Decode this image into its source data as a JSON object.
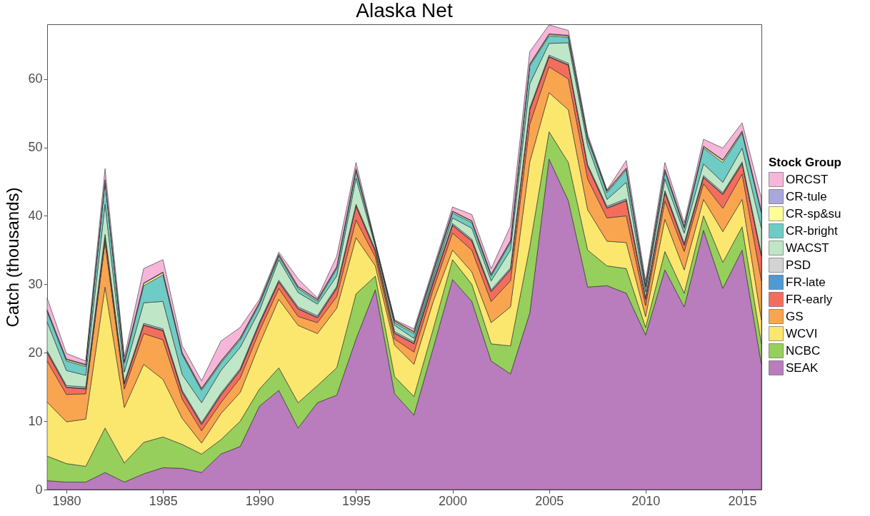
{
  "chart_data": {
    "type": "area",
    "title": "Alaska Net",
    "ylabel": "Catch (thousands)",
    "legend_title": "Stock Group",
    "stacked": true,
    "legend": "right",
    "x": [
      1979,
      1980,
      1981,
      1982,
      1983,
      1984,
      1985,
      1986,
      1987,
      1988,
      1989,
      1990,
      1991,
      1992,
      1993,
      1994,
      1995,
      1996,
      1997,
      1998,
      1999,
      2000,
      2001,
      2002,
      2003,
      2004,
      2005,
      2006,
      2007,
      2008,
      2009,
      2010,
      2011,
      2012,
      2013,
      2014,
      2015,
      2016
    ],
    "xlim": [
      1979,
      2016
    ],
    "xticks": [
      1980,
      1985,
      1990,
      1995,
      2000,
      2005,
      2010,
      2015
    ],
    "ylim": [
      0,
      68
    ],
    "yticks": [
      0,
      10,
      20,
      30,
      40,
      50,
      60
    ],
    "series": [
      {
        "name": "SEAK",
        "color": "#b97cbd",
        "values": [
          1.3,
          1.1,
          1.1,
          2.5,
          1.1,
          2.3,
          3.2,
          3.1,
          2.5,
          5.2,
          6.3,
          12.2,
          14.5,
          9.0,
          12.7,
          13.8,
          22.0,
          29.2,
          14.0,
          10.9,
          20.7,
          30.7,
          27.5,
          18.8,
          16.9,
          25.8,
          48.3,
          42.2,
          29.6,
          29.8,
          28.7,
          22.6,
          32.1,
          26.7,
          37.9,
          29.4,
          35.0,
          18.3
        ]
      },
      {
        "name": "NCBC",
        "color": "#96cf5c",
        "values": [
          3.6,
          2.7,
          2.3,
          6.5,
          2.8,
          4.6,
          4.5,
          3.5,
          2.7,
          2.1,
          3.7,
          2.5,
          3.3,
          3.7,
          2.5,
          4.0,
          6.6,
          2.0,
          2.5,
          2.7,
          2.8,
          2.9,
          2.5,
          2.5,
          4.1,
          9.7,
          4.0,
          5.6,
          5.4,
          2.9,
          3.6,
          1.1,
          2.7,
          2.0,
          2.1,
          3.8,
          3.4,
          3.0
        ]
      },
      {
        "name": "WCVI",
        "color": "#fbe76e",
        "values": [
          7.9,
          6.1,
          6.9,
          20.6,
          8.1,
          11.4,
          8.4,
          3.8,
          1.6,
          3.8,
          4.2,
          6.6,
          10.0,
          11.3,
          7.6,
          8.7,
          8.2,
          1.5,
          4.6,
          4.7,
          4.0,
          1.4,
          1.8,
          3.1,
          5.7,
          12.4,
          5.7,
          7.7,
          5.9,
          3.6,
          3.8,
          1.6,
          4.7,
          3.4,
          2.4,
          4.5,
          4.0,
          3.5
        ]
      },
      {
        "name": "GS",
        "color": "#f9a54f",
        "values": [
          6.0,
          4.0,
          3.7,
          6.5,
          2.7,
          4.5,
          5.8,
          2.8,
          1.8,
          1.6,
          2.1,
          1.9,
          1.6,
          1.3,
          1.6,
          1.7,
          2.6,
          1.3,
          0.9,
          1.8,
          1.8,
          2.5,
          3.2,
          3.1,
          3.8,
          5.5,
          3.8,
          4.5,
          4.5,
          3.4,
          3.9,
          1.6,
          2.7,
          2.7,
          2.3,
          3.4,
          3.7,
          5.7
        ]
      },
      {
        "name": "FR-early",
        "color": "#f46d5c",
        "values": [
          1.2,
          1.0,
          0.7,
          0.9,
          0.7,
          1.2,
          1.3,
          1.0,
          0.9,
          1.1,
          1.1,
          1.0,
          0.9,
          1.1,
          0.7,
          1.2,
          2.0,
          0.8,
          0.8,
          1.2,
          0.9,
          1.1,
          1.3,
          1.4,
          1.6,
          2.1,
          1.4,
          2.0,
          1.8,
          1.4,
          2.2,
          0.9,
          1.2,
          0.9,
          0.9,
          2.0,
          1.5,
          3.6
        ]
      },
      {
        "name": "FR-late",
        "color": "#4f9ad3",
        "values": [
          0.1,
          0.1,
          0.1,
          0.1,
          0.1,
          0.1,
          0.1,
          0.1,
          0.1,
          0.1,
          0.1,
          0.1,
          0.1,
          0.1,
          0.1,
          0.1,
          0.1,
          0.1,
          0.1,
          0.1,
          0.1,
          0.1,
          0.1,
          0.1,
          0.1,
          0.1,
          0.1,
          0.1,
          0.1,
          0.1,
          0.1,
          0.1,
          0.1,
          0.1,
          0.1,
          0.1,
          0.1,
          0.1
        ]
      },
      {
        "name": "PSD",
        "color": "#d3d3d3",
        "values": [
          0.2,
          0.2,
          0.2,
          0.2,
          0.2,
          0.2,
          0.2,
          0.2,
          0.2,
          0.2,
          0.2,
          0.2,
          0.2,
          0.2,
          0.2,
          0.2,
          0.2,
          0.2,
          0.2,
          0.2,
          0.2,
          0.2,
          0.2,
          0.2,
          0.2,
          0.2,
          0.2,
          0.2,
          0.2,
          0.2,
          0.2,
          0.2,
          0.2,
          0.2,
          0.2,
          0.2,
          0.2,
          0.2
        ]
      },
      {
        "name": "WACST",
        "color": "#bfe6c6",
        "values": [
          4.2,
          2.2,
          1.7,
          4.4,
          1.5,
          3.0,
          4.0,
          2.3,
          2.9,
          3.3,
          3.1,
          1.7,
          3.0,
          2.1,
          1.7,
          1.5,
          3.8,
          0.5,
          0.9,
          0.5,
          0.5,
          0.8,
          1.6,
          1.3,
          2.6,
          3.5,
          1.7,
          3.0,
          2.8,
          1.0,
          2.4,
          0.8,
          1.7,
          1.5,
          1.7,
          1.5,
          2.0,
          3.8
        ]
      },
      {
        "name": "CR-bright",
        "color": "#6fcbc5",
        "values": [
          1.5,
          1.4,
          1.3,
          3.3,
          1.3,
          2.5,
          3.9,
          2.9,
          1.8,
          1.1,
          1.1,
          0.9,
          0.5,
          0.6,
          0.4,
          1.1,
          1.1,
          0.2,
          0.4,
          0.7,
          0.7,
          0.7,
          0.8,
          0.7,
          1.1,
          2.6,
          1.1,
          0.8,
          0.9,
          1.0,
          1.8,
          0.7,
          1.1,
          0.7,
          2.3,
          2.9,
          2.2,
          2.2
        ]
      },
      {
        "name": "CR-sp&su",
        "color": "#fdfd9a",
        "values": [
          0.2,
          0.2,
          0.2,
          0.2,
          0.2,
          0.3,
          0.3,
          0.2,
          0.2,
          0.2,
          0.2,
          0.2,
          0.2,
          0.2,
          0.2,
          0.2,
          0.2,
          0.1,
          0.2,
          0.2,
          0.2,
          0.2,
          0.2,
          0.2,
          0.2,
          0.2,
          0.2,
          0.2,
          0.2,
          0.2,
          0.2,
          0.2,
          0.2,
          0.2,
          0.2,
          0.3,
          0.2,
          0.2
        ]
      },
      {
        "name": "CR-tule",
        "color": "#a9a7db",
        "values": [
          0.1,
          0.1,
          0.1,
          0.1,
          0.1,
          0.1,
          0.1,
          0.1,
          0.1,
          0.1,
          0.1,
          0.1,
          0.1,
          0.1,
          0.1,
          0.1,
          0.1,
          0.1,
          0.1,
          0.1,
          0.1,
          0.1,
          0.1,
          0.1,
          0.1,
          0.1,
          0.1,
          0.1,
          0.1,
          0.1,
          0.1,
          0.1,
          0.1,
          0.1,
          0.1,
          0.1,
          0.1,
          0.1
        ]
      },
      {
        "name": "ORCST",
        "color": "#f6b6d9",
        "values": [
          1.7,
          0.8,
          0.5,
          1.6,
          0.6,
          2.1,
          1.8,
          1.0,
          1.1,
          2.9,
          1.5,
          0.4,
          0.3,
          1.1,
          0.2,
          1.5,
          0.9,
          0.1,
          0.1,
          0.4,
          0.4,
          0.6,
          0.9,
          0.8,
          2.1,
          1.8,
          1.3,
          0.7,
          0.4,
          0.1,
          1.1,
          0.6,
          1.0,
          0.5,
          1.0,
          1.7,
          1.2,
          1.9
        ]
      }
    ]
  }
}
